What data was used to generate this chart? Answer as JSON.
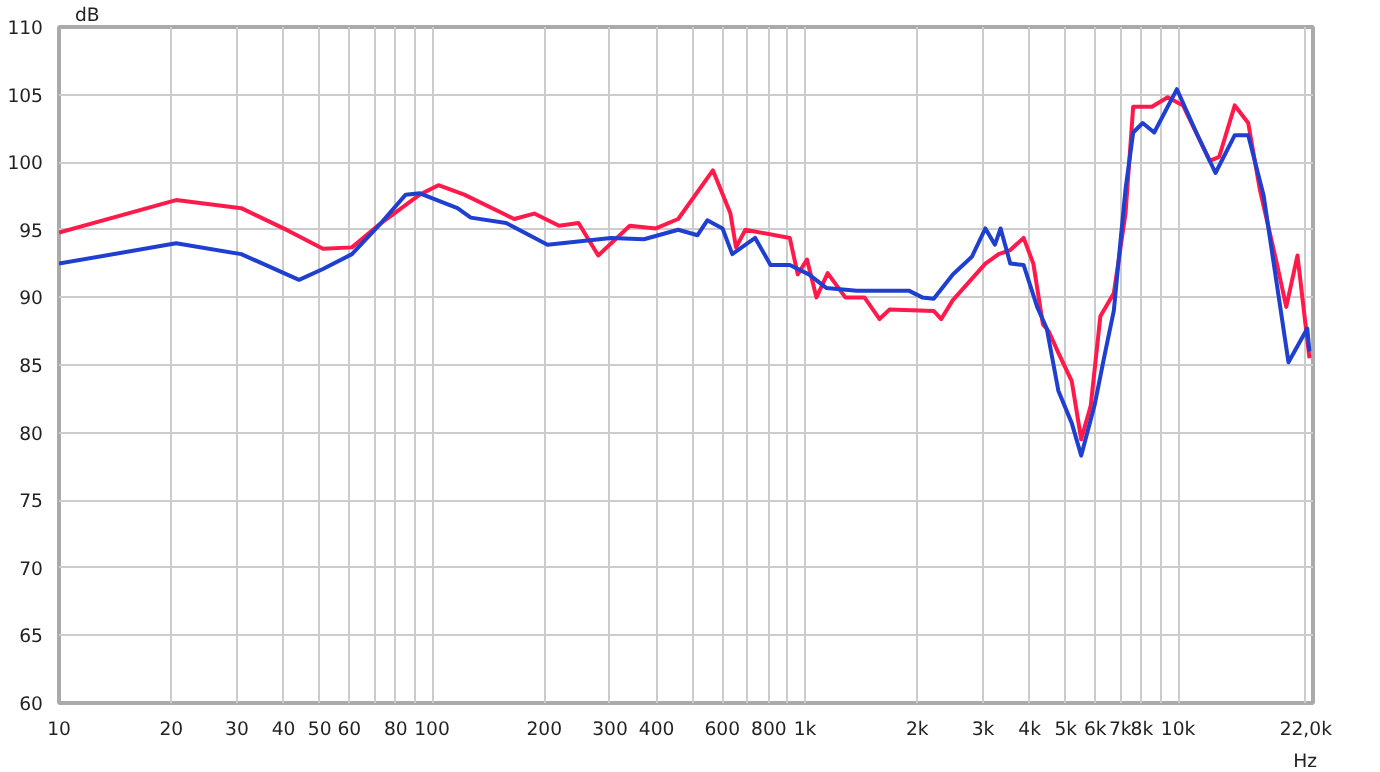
{
  "chart_data": {
    "type": "line",
    "xlabel": "Hz",
    "ylabel": "dB",
    "log": "x",
    "grid": true,
    "line_style": "solid",
    "xlim": [
      10,
      23000
    ],
    "ylim": [
      60,
      110
    ],
    "xticks": [
      10,
      20,
      30,
      40,
      50,
      60,
      {
        "value": 70,
        "label": null
      },
      80,
      {
        "value": 90,
        "label": null
      },
      100,
      200,
      300,
      400,
      {
        "value": 500,
        "label": null
      },
      600,
      {
        "value": 700,
        "label": null
      },
      800,
      {
        "value": 900,
        "label": null
      },
      {
        "value": 1000,
        "label": "1k"
      },
      {
        "value": 2000,
        "label": "2k"
      },
      {
        "value": 3000,
        "label": "3k"
      },
      {
        "value": 4000,
        "label": "4k"
      },
      {
        "value": 5000,
        "label": "5k"
      },
      {
        "value": 6000,
        "label": "6k"
      },
      {
        "value": 7000,
        "label": "7k"
      },
      {
        "value": 8000,
        "label": "8k"
      },
      {
        "value": 9000,
        "label": null
      },
      {
        "value": 10000,
        "label": "10k"
      },
      {
        "value": 22000,
        "label": "22,0k"
      }
    ],
    "yticks": [
      60,
      65,
      70,
      75,
      80,
      85,
      90,
      95,
      100,
      105,
      110
    ],
    "series": [
      {
        "color": "#ff1a4b",
        "x": [
          10,
          20.6,
          30.8,
          41.4,
          51,
          61,
          73,
          92.7,
          104,
          122,
          155,
          166,
          188,
          219,
          247,
          279,
          339,
          398,
          457,
          566,
          631,
          653,
          692,
          910,
          956,
          1012,
          1073,
          1150,
          1282,
          1443,
          1584,
          1683,
          2213,
          2318,
          2490,
          3044,
          3304,
          3550,
          3854,
          4093,
          4343,
          4500,
          4776,
          5188,
          5500,
          5834,
          6190,
          6725,
          7230,
          7580,
          8510,
          9380,
          10310,
          12160,
          12890,
          14190,
          15420,
          16560,
          18400,
          19500,
          20900,
          22500
        ],
        "values": [
          94.8,
          97.2,
          96.6,
          94.9,
          93.6,
          93.7,
          95.5,
          97.6,
          98.3,
          97.6,
          96.2,
          95.8,
          96.2,
          95.3,
          95.5,
          93.1,
          95.3,
          95.1,
          95.8,
          99.4,
          96.2,
          93.7,
          95,
          94.4,
          91.7,
          92.8,
          90,
          91.8,
          90,
          90,
          88.4,
          89.1,
          89,
          88.4,
          89.8,
          92.5,
          93.2,
          93.5,
          94.4,
          92.5,
          88,
          87.5,
          85.9,
          83.8,
          79.5,
          82,
          88.6,
          90.3,
          96.2,
          104.1,
          104.1,
          104.8,
          104.2,
          100.1,
          100.4,
          104.2,
          102.9,
          98,
          92.5,
          89.3,
          93.1,
          85.5
        ]
      },
      {
        "color": "#1f3fd0",
        "x": [
          10,
          20.6,
          30.8,
          44,
          51,
          61,
          73,
          85,
          92.7,
          117,
          127,
          158,
          204,
          302,
          370,
          457,
          515,
          547,
          601,
          638,
          735,
          808,
          910,
          1024,
          1140,
          1377,
          1897,
          2061,
          2213,
          2490,
          2800,
          3044,
          3229,
          3344,
          3550,
          3854,
          4190,
          4446,
          4776,
          5188,
          5500,
          5970,
          6340,
          6725,
          7230,
          7580,
          8040,
          8630,
          9930,
          11190,
          12600,
          14190,
          15420,
          16940,
          19770,
          22200,
          22500
        ],
        "values": [
          92.5,
          94,
          93.2,
          91.3,
          92.1,
          93.2,
          95.5,
          97.6,
          97.7,
          96.6,
          95.9,
          95.5,
          93.9,
          94.4,
          94.3,
          95,
          94.6,
          95.7,
          95.1,
          93.2,
          94.4,
          92.4,
          92.4,
          91.7,
          90.7,
          90.5,
          90.5,
          90,
          89.9,
          91.7,
          93,
          95.1,
          93.9,
          95.1,
          92.5,
          92.4,
          89.3,
          87.7,
          83.1,
          80.7,
          78.3,
          82,
          85.6,
          89,
          98,
          102.2,
          102.9,
          102.2,
          105.4,
          102.2,
          99.2,
          102,
          102,
          97.6,
          85.2,
          87.7,
          86
        ]
      }
    ]
  }
}
